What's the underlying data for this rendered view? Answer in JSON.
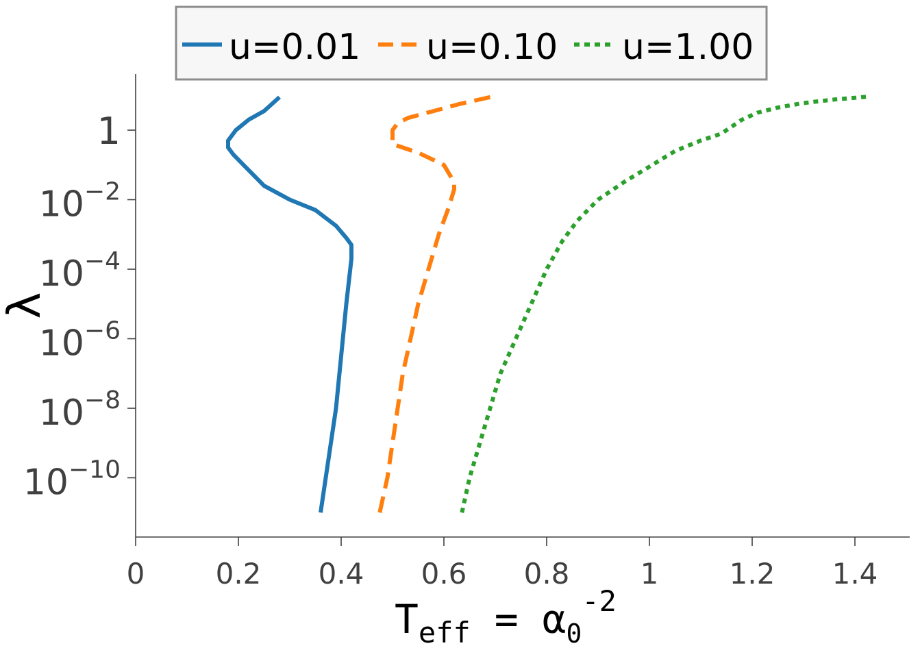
{
  "chart_data": {
    "type": "line",
    "xlabel": "T",
    "xlabel_sub": "eff",
    "xlabel_rest": " = α",
    "xlabel_sub2": "0",
    "xlabel_sup": "-2",
    "ylabel": "λ",
    "xlim": [
      0,
      1.5
    ],
    "ylim_log10": [
      -11.8,
      1.6
    ],
    "yscale": "log",
    "x_ticks": [
      0,
      0.2,
      0.4,
      0.6,
      0.8,
      1.0,
      1.2,
      1.4
    ],
    "x_tick_labels": [
      "0",
      "0.2",
      "0.4",
      "0.6",
      "0.8",
      "1",
      "1.2",
      "1.4"
    ],
    "y_ticks": [
      {
        "exp": 0,
        "label": "1",
        "sup": ""
      },
      {
        "exp": -2,
        "label": "10",
        "sup": "−2"
      },
      {
        "exp": -4,
        "label": "10",
        "sup": "−4"
      },
      {
        "exp": -6,
        "label": "10",
        "sup": "−6"
      },
      {
        "exp": -8,
        "label": "10",
        "sup": "−8"
      },
      {
        "exp": -10,
        "label": "10",
        "sup": "−10"
      }
    ],
    "legend_position": "top-center",
    "series": [
      {
        "name": "u=0.01",
        "color": "#1f77b4",
        "style": "solid",
        "x": [
          0.36,
          0.37,
          0.38,
          0.39,
          0.4,
          0.41,
          0.42,
          0.42,
          0.41,
          0.39,
          0.35,
          0.3,
          0.25,
          0.21,
          0.19,
          0.18,
          0.18,
          0.195,
          0.22,
          0.25,
          0.28
        ],
        "log10_y": [
          -11.0,
          -10.0,
          -9.0,
          -8.0,
          -6.5,
          -5.0,
          -3.7,
          -3.3,
          -3.1,
          -2.75,
          -2.3,
          -2.0,
          -1.6,
          -1.0,
          -0.7,
          -0.5,
          -0.3,
          0.0,
          0.3,
          0.55,
          0.95
        ]
      },
      {
        "name": "u=0.10",
        "color": "#ff7f0e",
        "style": "dashed",
        "x": [
          0.475,
          0.49,
          0.5,
          0.51,
          0.52,
          0.535,
          0.55,
          0.57,
          0.59,
          0.61,
          0.62,
          0.62,
          0.6,
          0.55,
          0.5,
          0.5,
          0.51,
          0.53,
          0.58,
          0.63,
          0.69
        ],
        "log10_y": [
          -11.0,
          -10.0,
          -9.0,
          -8.0,
          -7.0,
          -6.0,
          -5.0,
          -4.0,
          -3.0,
          -2.2,
          -1.7,
          -1.5,
          -1.0,
          -0.65,
          -0.4,
          0.0,
          0.2,
          0.35,
          0.55,
          0.75,
          0.95
        ]
      },
      {
        "name": "u=1.00",
        "color": "#2ca02c",
        "style": "dotted",
        "x": [
          0.635,
          0.65,
          0.67,
          0.69,
          0.71,
          0.74,
          0.77,
          0.8,
          0.83,
          0.86,
          0.9,
          0.95,
          1.0,
          1.05,
          1.1,
          1.14,
          1.16,
          1.18,
          1.21,
          1.25,
          1.3,
          1.36,
          1.43
        ],
        "log10_y": [
          -11.0,
          -10.0,
          -9.0,
          -8.0,
          -7.0,
          -6.0,
          -5.0,
          -4.0,
          -3.2,
          -2.6,
          -2.0,
          -1.5,
          -1.05,
          -0.6,
          -0.3,
          -0.1,
          0.1,
          0.3,
          0.5,
          0.65,
          0.78,
          0.88,
          0.97
        ]
      }
    ]
  }
}
